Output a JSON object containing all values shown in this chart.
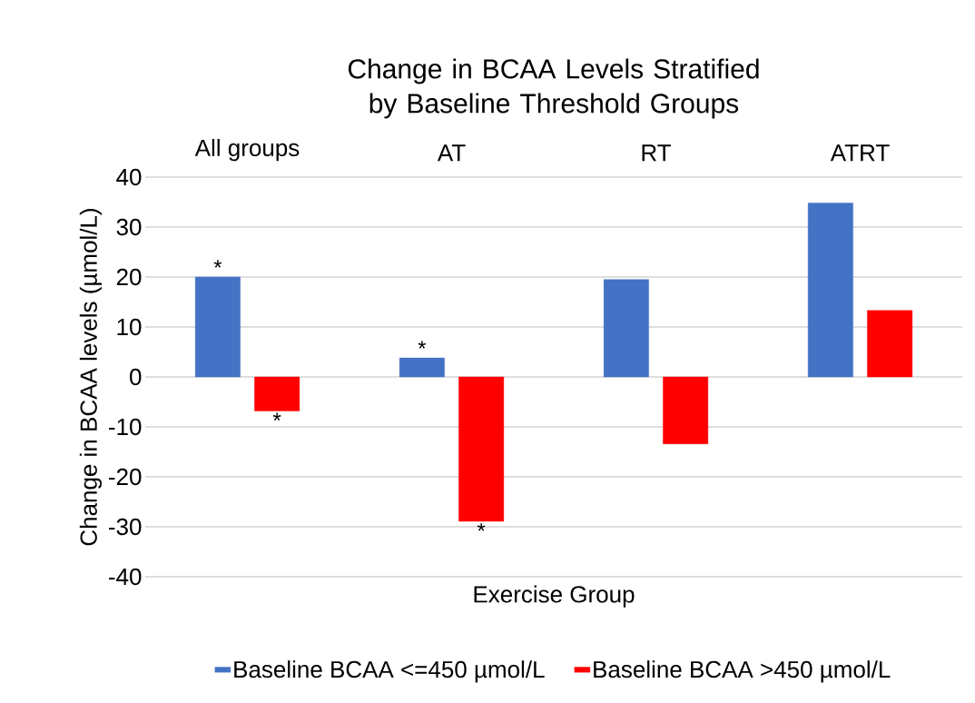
{
  "chart_data": {
    "type": "bar",
    "title": "Change in BCAA Levels Stratified by Baseline Threshold Groups",
    "xlabel": "Exercise Group",
    "ylabel": "Change in BCAA levels (µmol/L)",
    "categories": [
      "All groups",
      "AT",
      "RT",
      "ATRT"
    ],
    "series": [
      {
        "name": "Baseline BCAA <=450 µmol/L",
        "color": "#4472c4",
        "values": [
          20,
          3.8,
          19.5,
          34.8
        ],
        "value_labels": [
          "*",
          "*",
          null,
          null
        ]
      },
      {
        "name": "Baseline BCAA >450 µmol/L",
        "color": "#ff0000",
        "values": [
          -6.8,
          -28.9,
          -13.4,
          13.3
        ],
        "value_labels": [
          "*",
          "*",
          null,
          null
        ]
      }
    ],
    "ylim": [
      -40,
      40
    ],
    "yticks": [
      -40,
      -30,
      -20,
      -10,
      0,
      10,
      20,
      30,
      40
    ],
    "grid": "y",
    "legend": "bottom"
  }
}
